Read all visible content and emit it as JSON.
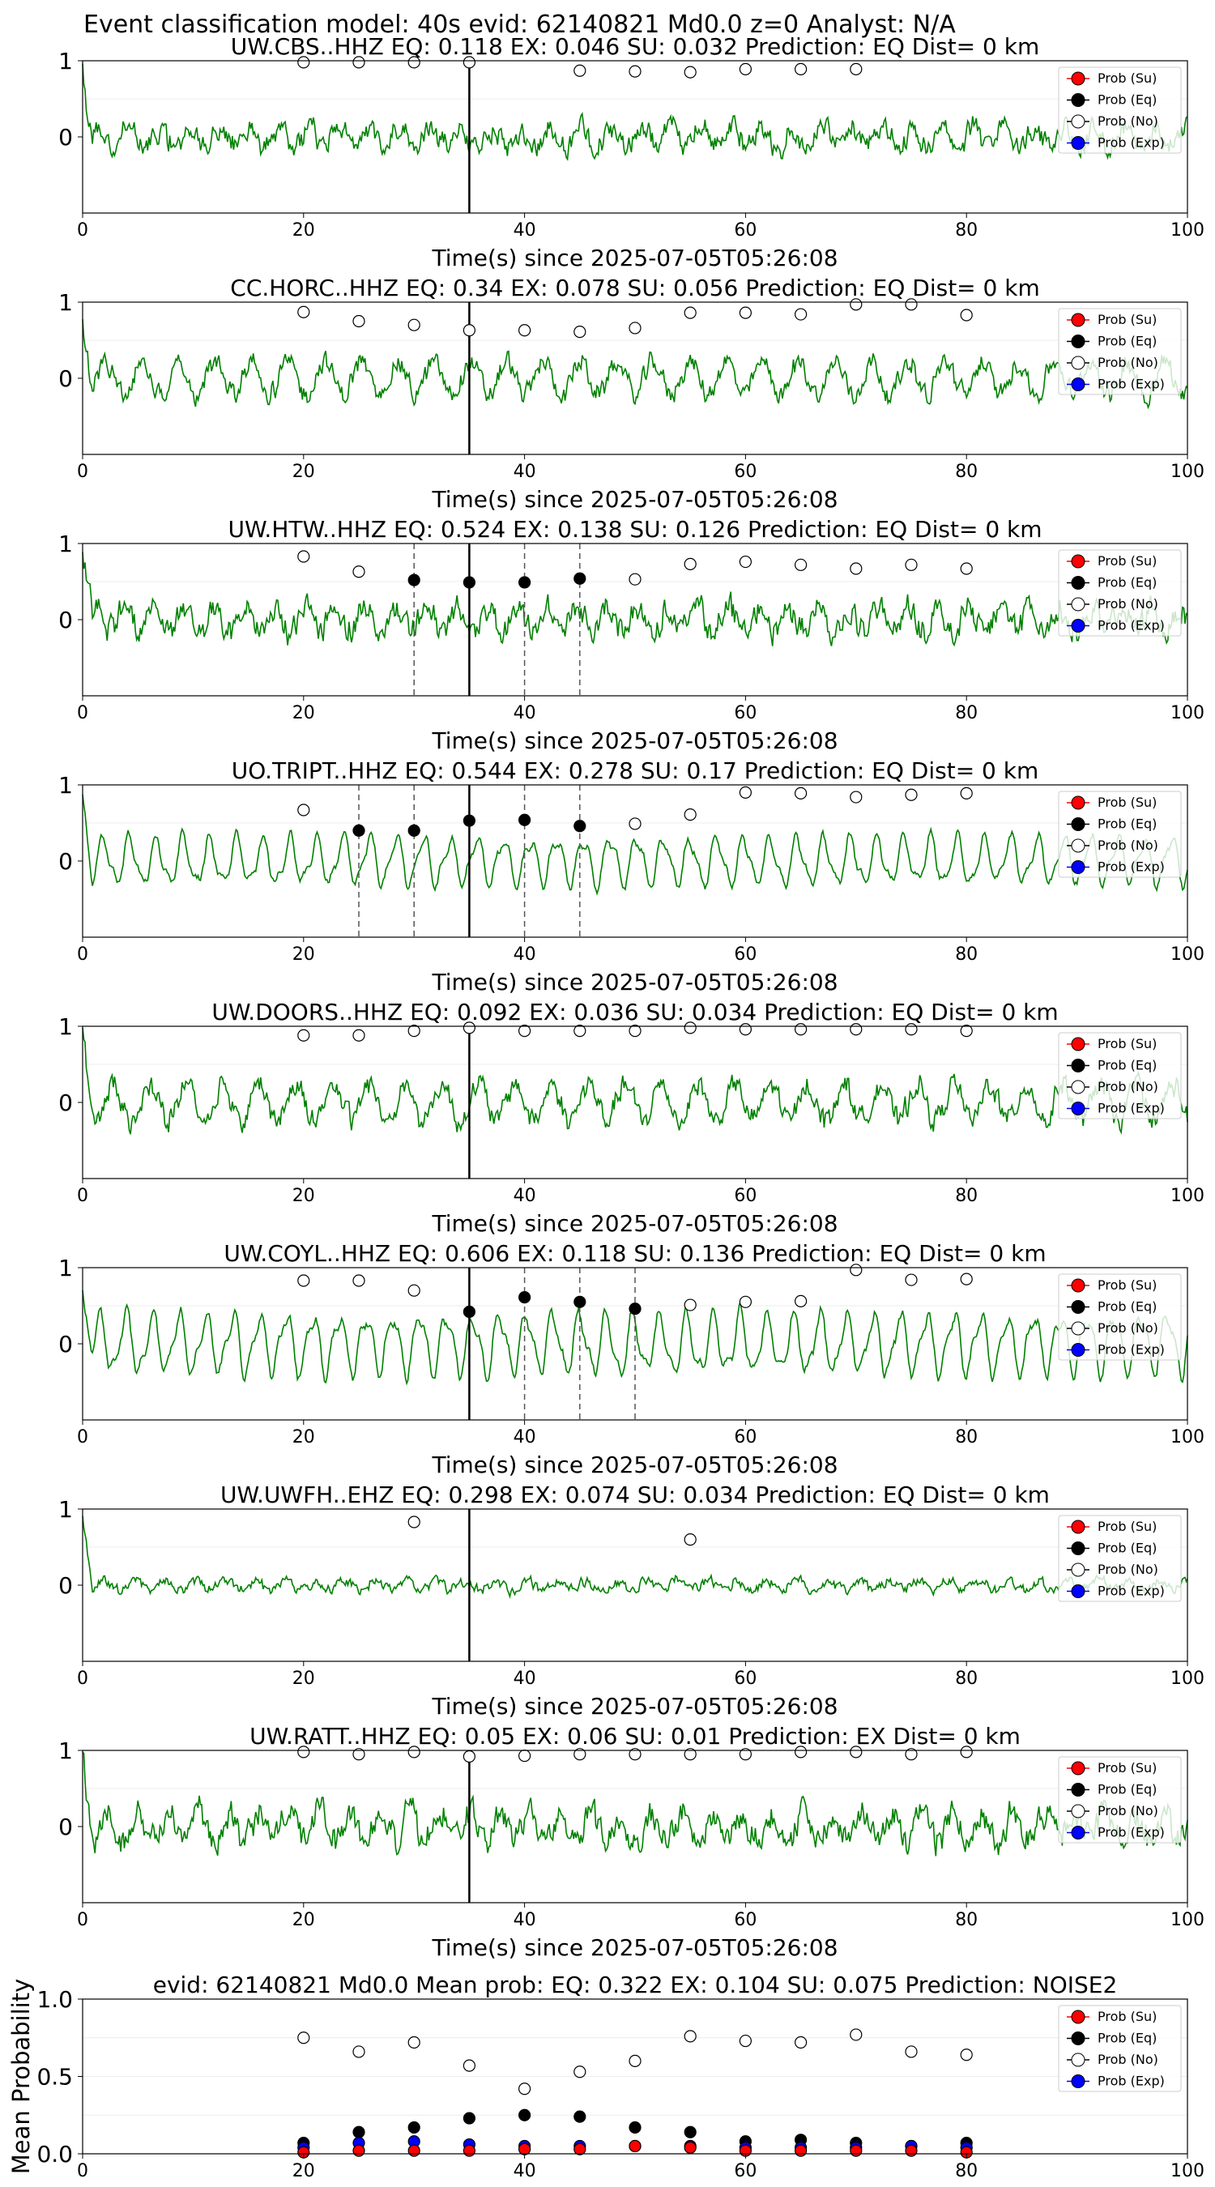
{
  "figure": {
    "suptitle": "Event classification model: 40s evid: 62140821 Md0.0 z=0 Analyst: N/A"
  },
  "legend": [
    "Prob (Su)",
    "Prob (Eq)",
    "Prob (No)",
    "Prob (Exp)"
  ],
  "colors": {
    "wave": "#008000",
    "su": "#ff0000",
    "eq": "#000000",
    "no": "#ffffff",
    "exp": "#0000ff"
  },
  "chart_data": [
    {
      "type": "line",
      "title": "UW.CBS..HHZ   EQ: 0.118  EX: 0.046  SU: 0.032   Prediction: EQ    Dist= 0 km",
      "xlabel": "Time(s) since 2025-07-05T05:26:08",
      "xlim": [
        0,
        100
      ],
      "ylim": [
        -1,
        1
      ],
      "xticks": [
        "0",
        "20",
        "40",
        "60",
        "80",
        "100"
      ],
      "yticks": [
        "1",
        "0"
      ],
      "wave": {
        "amplitude": 0.4,
        "style": "noise",
        "seed": 11
      },
      "pick_time": 35,
      "no_points": [
        [
          20,
          0.98
        ],
        [
          25,
          0.98
        ],
        [
          30,
          0.98
        ],
        [
          35,
          0.98
        ],
        [
          45,
          0.87
        ],
        [
          50,
          0.86
        ],
        [
          55,
          0.85
        ],
        [
          60,
          0.89
        ],
        [
          65,
          0.89
        ],
        [
          70,
          0.89
        ]
      ],
      "eq_points": [],
      "dashed_lines": []
    },
    {
      "type": "line",
      "title": "CC.HORC..HHZ   EQ: 0.34  EX: 0.078  SU: 0.056   Prediction: EQ    Dist= 0 km",
      "xlabel": "Time(s) since 2025-07-05T05:26:08",
      "xlim": [
        0,
        100
      ],
      "ylim": [
        -1,
        1
      ],
      "xticks": [
        "0",
        "20",
        "40",
        "60",
        "80",
        "100"
      ],
      "yticks": [
        "1",
        "0"
      ],
      "wave": {
        "amplitude": 0.45,
        "style": "mixed",
        "seed": 23
      },
      "pick_time": 35,
      "no_points": [
        [
          20,
          0.87
        ],
        [
          25,
          0.75
        ],
        [
          30,
          0.7
        ],
        [
          35,
          0.63
        ],
        [
          40,
          0.63
        ],
        [
          45,
          0.61
        ],
        [
          50,
          0.66
        ],
        [
          55,
          0.86
        ],
        [
          60,
          0.86
        ],
        [
          65,
          0.84
        ],
        [
          70,
          0.97
        ],
        [
          75,
          0.97
        ],
        [
          80,
          0.83
        ]
      ],
      "eq_points": [],
      "dashed_lines": []
    },
    {
      "type": "line",
      "title": "UW.HTW..HHZ   EQ: 0.524  EX: 0.138  SU: 0.126   Prediction: EQ    Dist= 0 km",
      "xlabel": "Time(s) since 2025-07-05T05:26:08",
      "xlim": [
        0,
        100
      ],
      "ylim": [
        -1,
        1
      ],
      "xticks": [
        "0",
        "20",
        "40",
        "60",
        "80",
        "100"
      ],
      "yticks": [
        "1",
        "0"
      ],
      "wave": {
        "amplitude": 0.45,
        "style": "noise",
        "seed": 37
      },
      "pick_time": 35,
      "no_points": [
        [
          20,
          0.83
        ],
        [
          25,
          0.63
        ],
        [
          50,
          0.53
        ],
        [
          55,
          0.73
        ],
        [
          60,
          0.76
        ],
        [
          65,
          0.72
        ],
        [
          70,
          0.67
        ],
        [
          75,
          0.72
        ],
        [
          80,
          0.67
        ]
      ],
      "eq_points": [
        [
          30,
          0.52
        ],
        [
          35,
          0.49
        ],
        [
          40,
          0.49
        ],
        [
          45,
          0.54
        ]
      ],
      "dashed_lines": [
        30,
        40,
        45
      ]
    },
    {
      "type": "line",
      "title": "UO.TRIPT..HHZ   EQ: 0.544  EX: 0.278  SU: 0.17   Prediction: EQ    Dist= 0 km",
      "xlabel": "Time(s) since 2025-07-05T05:26:08",
      "xlim": [
        0,
        100
      ],
      "ylim": [
        -1,
        1
      ],
      "xticks": [
        "0",
        "20",
        "40",
        "60",
        "80",
        "100"
      ],
      "yticks": [
        "1",
        "0"
      ],
      "wave": {
        "amplitude": 0.4,
        "style": "periodic",
        "seed": 41
      },
      "pick_time": 35,
      "no_points": [
        [
          20,
          0.67
        ],
        [
          50,
          0.49
        ],
        [
          55,
          0.61
        ],
        [
          60,
          0.9
        ],
        [
          65,
          0.89
        ],
        [
          70,
          0.84
        ],
        [
          75,
          0.87
        ],
        [
          80,
          0.89
        ]
      ],
      "eq_points": [
        [
          25,
          0.4
        ],
        [
          30,
          0.4
        ],
        [
          35,
          0.53
        ],
        [
          40,
          0.54
        ],
        [
          45,
          0.46
        ]
      ],
      "dashed_lines": [
        25,
        30,
        40,
        45
      ]
    },
    {
      "type": "line",
      "title": "UW.DOORS..HHZ   EQ: 0.092  EX: 0.036  SU: 0.034   Prediction: EQ    Dist= 0 km",
      "xlabel": "Time(s) since 2025-07-05T05:26:08",
      "xlim": [
        0,
        100
      ],
      "ylim": [
        -1,
        1
      ],
      "xticks": [
        "0",
        "20",
        "40",
        "60",
        "80",
        "100"
      ],
      "yticks": [
        "1",
        "0"
      ],
      "wave": {
        "amplitude": 0.5,
        "style": "mixed",
        "seed": 53
      },
      "pick_time": 35,
      "no_points": [
        [
          20,
          0.88
        ],
        [
          25,
          0.88
        ],
        [
          30,
          0.94
        ],
        [
          35,
          0.98
        ],
        [
          40,
          0.94
        ],
        [
          45,
          0.94
        ],
        [
          50,
          0.94
        ],
        [
          55,
          0.98
        ],
        [
          60,
          0.96
        ],
        [
          65,
          0.96
        ],
        [
          70,
          0.96
        ],
        [
          75,
          0.96
        ],
        [
          80,
          0.94
        ]
      ],
      "eq_points": [],
      "dashed_lines": []
    },
    {
      "type": "line",
      "title": "UW.COYL..HHZ   EQ: 0.606  EX: 0.118  SU: 0.136   Prediction: EQ    Dist= 0 km",
      "xlabel": "Time(s) since 2025-07-05T05:26:08",
      "xlim": [
        0,
        100
      ],
      "ylim": [
        -1,
        1
      ],
      "xticks": [
        "0",
        "20",
        "40",
        "60",
        "80",
        "100"
      ],
      "yticks": [
        "1",
        "0"
      ],
      "wave": {
        "amplitude": 0.5,
        "style": "periodic",
        "seed": 67
      },
      "pick_time": 35,
      "no_points": [
        [
          20,
          0.83
        ],
        [
          25,
          0.83
        ],
        [
          30,
          0.7
        ],
        [
          55,
          0.51
        ],
        [
          60,
          0.55
        ],
        [
          65,
          0.56
        ],
        [
          70,
          0.97
        ],
        [
          75,
          0.84
        ],
        [
          80,
          0.85
        ]
      ],
      "eq_points": [
        [
          35,
          0.42
        ],
        [
          40,
          0.61
        ],
        [
          45,
          0.55
        ],
        [
          50,
          0.46
        ]
      ],
      "dashed_lines": [
        40,
        45,
        50
      ]
    },
    {
      "type": "line",
      "title": "UW.UWFH..EHZ   EQ: 0.298  EX: 0.074  SU: 0.034   Prediction: EQ    Dist= 0 km",
      "xlabel": "Time(s) since 2025-07-05T05:26:08",
      "xlim": [
        0,
        100
      ],
      "ylim": [
        -1,
        1
      ],
      "xticks": [
        "0",
        "20",
        "40",
        "60",
        "80",
        "100"
      ],
      "yticks": [
        "1",
        "0"
      ],
      "wave": {
        "amplitude": 0.18,
        "style": "noise",
        "seed": 79
      },
      "pick_time": 35,
      "no_points": [
        [
          30,
          0.83
        ],
        [
          55,
          0.6
        ]
      ],
      "eq_points": [],
      "dashed_lines": []
    },
    {
      "type": "line",
      "title": "UW.RATT..HHZ   EQ: 0.05  EX: 0.06  SU: 0.01   Prediction: EX    Dist= 0 km",
      "xlabel": "Time(s) since 2025-07-05T05:26:08",
      "xlim": [
        0,
        100
      ],
      "ylim": [
        -1,
        1
      ],
      "xticks": [
        "0",
        "20",
        "40",
        "60",
        "80",
        "100"
      ],
      "yticks": [
        "1",
        "0"
      ],
      "wave": {
        "amplitude": 0.5,
        "style": "noise",
        "seed": 97
      },
      "pick_time": 35,
      "no_points": [
        [
          20,
          0.98
        ],
        [
          25,
          0.95
        ],
        [
          30,
          0.98
        ],
        [
          35,
          0.92
        ],
        [
          40,
          0.93
        ],
        [
          45,
          0.95
        ],
        [
          50,
          0.95
        ],
        [
          55,
          0.95
        ],
        [
          60,
          0.95
        ],
        [
          65,
          0.98
        ],
        [
          70,
          0.98
        ],
        [
          75,
          0.95
        ],
        [
          80,
          0.98
        ]
      ],
      "eq_points": [],
      "dashed_lines": []
    },
    {
      "type": "scatter",
      "title": "evid: 62140821  Md0.0   Mean prob:    EQ: 0.322  EX: 0.104  SU: 0.075   Prediction: NOISE2",
      "xlabel": "",
      "ylabel": "Mean Probability",
      "xlim": [
        0,
        100
      ],
      "ylim": [
        0,
        1
      ],
      "xticks": [
        "0",
        "20",
        "40",
        "60",
        "80",
        "100"
      ],
      "yticks": [
        "1.0",
        "0.5",
        "0.0"
      ],
      "series": [
        {
          "name": "Prob (No)",
          "points": [
            [
              20,
              0.75
            ],
            [
              25,
              0.66
            ],
            [
              30,
              0.72
            ],
            [
              35,
              0.57
            ],
            [
              40,
              0.42
            ],
            [
              45,
              0.53
            ],
            [
              50,
              0.6
            ],
            [
              55,
              0.76
            ],
            [
              60,
              0.73
            ],
            [
              65,
              0.72
            ],
            [
              70,
              0.77
            ],
            [
              75,
              0.66
            ],
            [
              80,
              0.64
            ]
          ]
        },
        {
          "name": "Prob (Eq)",
          "points": [
            [
              20,
              0.07
            ],
            [
              25,
              0.14
            ],
            [
              30,
              0.17
            ],
            [
              35,
              0.23
            ],
            [
              40,
              0.25
            ],
            [
              45,
              0.24
            ],
            [
              50,
              0.17
            ],
            [
              55,
              0.14
            ],
            [
              60,
              0.08
            ],
            [
              65,
              0.09
            ],
            [
              70,
              0.07
            ],
            [
              75,
              0.05
            ],
            [
              80,
              0.07
            ]
          ]
        },
        {
          "name": "Prob (Exp)",
          "points": [
            [
              20,
              0.04
            ],
            [
              25,
              0.07
            ],
            [
              30,
              0.08
            ],
            [
              35,
              0.06
            ],
            [
              40,
              0.05
            ],
            [
              45,
              0.05
            ],
            [
              50,
              0.05
            ],
            [
              55,
              0.05
            ],
            [
              60,
              0.04
            ],
            [
              65,
              0.04
            ],
            [
              70,
              0.04
            ],
            [
              75,
              0.05
            ],
            [
              80,
              0.04
            ]
          ]
        },
        {
          "name": "Prob (Su)",
          "points": [
            [
              20,
              0.01
            ],
            [
              25,
              0.02
            ],
            [
              30,
              0.02
            ],
            [
              35,
              0.02
            ],
            [
              40,
              0.03
            ],
            [
              45,
              0.03
            ],
            [
              50,
              0.05
            ],
            [
              55,
              0.04
            ],
            [
              60,
              0.02
            ],
            [
              65,
              0.02
            ],
            [
              70,
              0.02
            ],
            [
              75,
              0.02
            ],
            [
              80,
              0.01
            ]
          ]
        }
      ]
    }
  ]
}
